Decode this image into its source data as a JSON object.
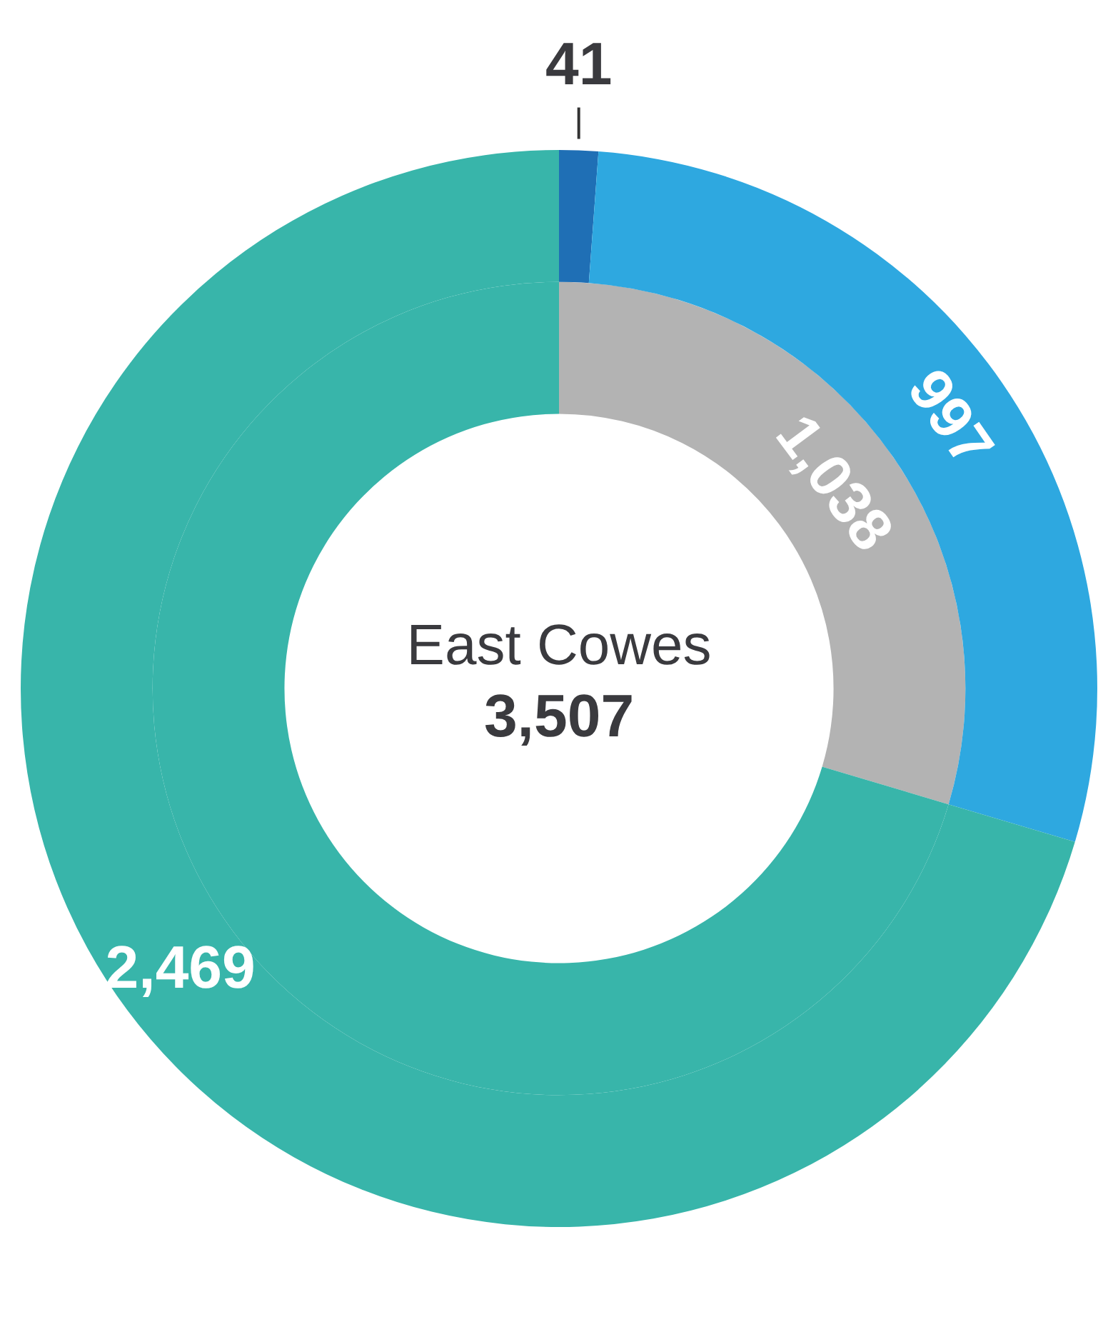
{
  "chart_data": {
    "type": "donut",
    "title": "East Cowes",
    "annotations": [
      "3,507"
    ],
    "categories": [
      null,
      null,
      null
    ],
    "series": [
      {
        "colors": [
          "#1f6fb5",
          "#2ea8e0",
          "#38b5aa"
        ],
        "values": [
          41,
          997,
          2469
        ],
        "value_labels": [
          "41",
          "997",
          "2,469"
        ]
      },
      {
        "colors": [
          "#b3b3b3",
          "#b3b3b3",
          "#38b5aa"
        ],
        "values": [
          1038,
          null,
          2469
        ],
        "value_labels": [
          "1,038",
          null,
          null
        ]
      }
    ]
  }
}
